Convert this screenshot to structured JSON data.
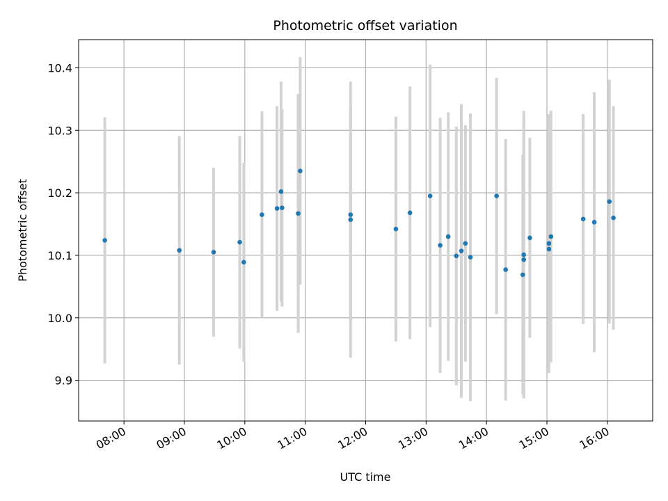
{
  "chart_data": {
    "type": "scatter",
    "title": "Photometric offset variation",
    "xlabel": "UTC time",
    "ylabel": "Photometric offset",
    "xlim": [
      "07:15",
      "16:45"
    ],
    "ylim": [
      9.835,
      10.445
    ],
    "grid": true,
    "x_ticks": [
      "08:00",
      "09:00",
      "10:00",
      "11:00",
      "12:00",
      "13:00",
      "14:00",
      "15:00",
      "16:00"
    ],
    "y_ticks": [
      "9.9",
      "10.0",
      "10.1",
      "10.2",
      "10.3",
      "10.4"
    ],
    "point_color": "#1f77b4",
    "errorbar_color": "#d3d3d3",
    "series": [
      {
        "points": [
          {
            "x": "07:41",
            "y": 10.124,
            "err": 0.197
          },
          {
            "x": "08:55",
            "y": 10.108,
            "err": 0.183
          },
          {
            "x": "09:29",
            "y": 10.105,
            "err": 0.135
          },
          {
            "x": "09:55",
            "y": 10.121,
            "err": 0.17
          },
          {
            "x": "09:59",
            "y": 10.089,
            "err": 0.159
          },
          {
            "x": "10:17",
            "y": 10.165,
            "err": 0.165
          },
          {
            "x": "10:32",
            "y": 10.175,
            "err": 0.164
          },
          {
            "x": "10:36",
            "y": 10.202,
            "err": 0.176
          },
          {
            "x": "10:37",
            "y": 10.176,
            "err": 0.158
          },
          {
            "x": "10:53",
            "y": 10.167,
            "err": 0.191
          },
          {
            "x": "10:55",
            "y": 10.235,
            "err": 0.182
          },
          {
            "x": "11:45",
            "y": 10.165,
            "err": 0.17
          },
          {
            "x": "11:45",
            "y": 10.157,
            "err": 0.221
          },
          {
            "x": "12:30",
            "y": 10.142,
            "err": 0.18
          },
          {
            "x": "12:44",
            "y": 10.168,
            "err": 0.202
          },
          {
            "x": "13:04",
            "y": 10.195,
            "err": 0.21
          },
          {
            "x": "13:14",
            "y": 10.116,
            "err": 0.204
          },
          {
            "x": "13:22",
            "y": 10.13,
            "err": 0.199
          },
          {
            "x": "13:30",
            "y": 10.099,
            "err": 0.207
          },
          {
            "x": "13:35",
            "y": 10.107,
            "err": 0.235
          },
          {
            "x": "13:39",
            "y": 10.119,
            "err": 0.189
          },
          {
            "x": "13:44",
            "y": 10.097,
            "err": 0.23
          },
          {
            "x": "14:10",
            "y": 10.195,
            "err": 0.189
          },
          {
            "x": "14:19",
            "y": 10.077,
            "err": 0.209
          },
          {
            "x": "14:36",
            "y": 10.069,
            "err": 0.192
          },
          {
            "x": "14:37",
            "y": 10.101,
            "err": 0.23
          },
          {
            "x": "14:37",
            "y": 10.093,
            "err": 0.221
          },
          {
            "x": "14:43",
            "y": 10.128,
            "err": 0.16
          },
          {
            "x": "15:02",
            "y": 10.119,
            "err": 0.207
          },
          {
            "x": "15:02",
            "y": 10.11,
            "err": 0.18
          },
          {
            "x": "15:04",
            "y": 10.13,
            "err": 0.201
          },
          {
            "x": "15:36",
            "y": 10.158,
            "err": 0.168
          },
          {
            "x": "15:47",
            "y": 10.153,
            "err": 0.208
          },
          {
            "x": "16:02",
            "y": 10.186,
            "err": 0.195
          },
          {
            "x": "16:06",
            "y": 10.16,
            "err": 0.179
          }
        ]
      }
    ]
  }
}
